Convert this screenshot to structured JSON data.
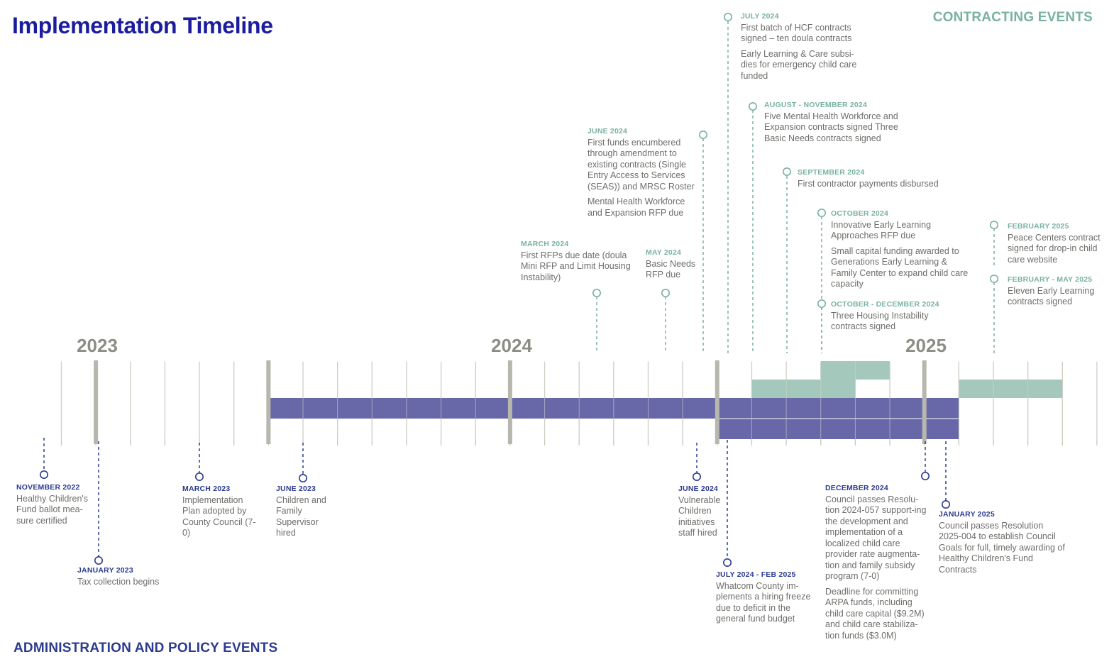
{
  "title": "Implementation Timeline",
  "contracting_label": "CONTRACTING EVENTS",
  "admin_label": "ADMINISTRATION AND POLICY EVENTS",
  "years": [
    "2023",
    "2024",
    "2025"
  ],
  "colors": {
    "title": "#1b1c9e",
    "contracting": "#79b1a2",
    "administration": "#2b3b8f",
    "purple_bar": "#6868a8",
    "green_bar": "#9fc5b8",
    "grid": "#c7c7be",
    "year_marker": "#b7b7ad",
    "text": "#6d6e6a"
  },
  "chart_data": {
    "type": "timeline",
    "axis": {
      "start": "2022-11",
      "end": "2025-09",
      "year_labels": [
        "2023",
        "2024",
        "2025"
      ]
    },
    "bars": [
      {
        "group": "administration",
        "start": "2023-06",
        "end": "2025-02"
      },
      {
        "group": "administration",
        "start": "2024-07",
        "end": "2025-02"
      },
      {
        "group": "contracting",
        "start": "2024-08",
        "end": "2024-11"
      },
      {
        "group": "contracting",
        "start": "2024-10",
        "end": "2024-12"
      },
      {
        "group": "contracting",
        "start": "2025-02",
        "end": "2025-05"
      }
    ],
    "contracting_events": [
      {
        "date": "JULY 2024",
        "desc": [
          "First batch of HCF contracts signed – ten doula contracts",
          "Early Learning & Care subsi-dies for emergency child care funded"
        ]
      },
      {
        "date": "AUGUST - NOVEMBER 2024",
        "desc": [
          "Five Mental Health Workforce and Expansion contracts signed Three Basic Needs contracts signed"
        ]
      },
      {
        "date": "JUNE 2024",
        "desc": [
          "First funds encumbered through amendment to existing contracts (Single Entry Access to Services (SEAS)) and MRSC Roster",
          "Mental Health Workforce and Expansion RFP due"
        ]
      },
      {
        "date": "SEPTEMBER 2024",
        "desc": [
          "First contractor payments disbursed"
        ]
      },
      {
        "date": "OCTOBER 2024",
        "desc": [
          "Innovative Early Learning Approaches RFP due",
          "Small capital funding awarded to Generations Early Learning & Family Center to expand child care capacity"
        ]
      },
      {
        "date": "OCTOBER - DECEMBER 2024",
        "desc": [
          "Three Housing Instability contracts signed"
        ]
      },
      {
        "date": "FEBRUARY 2025",
        "desc": [
          "Peace Centers contract signed for drop-in child care website"
        ]
      },
      {
        "date": "FEBRUARY - MAY 2025",
        "desc": [
          "Eleven Early Learning contracts signed"
        ]
      },
      {
        "date": "MARCH 2024",
        "desc": [
          "First RFPs due date (doula Mini RFP and Limit Housing Instability)"
        ]
      },
      {
        "date": "MAY 2024",
        "desc": [
          "Basic Needs RFP due"
        ]
      }
    ],
    "administration_events": [
      {
        "date": "NOVEMBER 2022",
        "desc": [
          "Healthy Children's Fund ballot mea-sure certified"
        ]
      },
      {
        "date": "JANUARY 2023",
        "desc": [
          "Tax collection begins"
        ]
      },
      {
        "date": "MARCH 2023",
        "desc": [
          "Implementation Plan adopted by County Council (7-0)"
        ]
      },
      {
        "date": "JUNE 2023",
        "desc": [
          "Children and Family Supervisor hired"
        ]
      },
      {
        "date": "JUNE 2024",
        "desc": [
          "Vulnerable Children initiatives staff hired"
        ]
      },
      {
        "date": "JULY 2024 - FEB 2025",
        "desc": [
          "Whatcom County im-plements a hiring freeze due to deficit in the general fund budget"
        ]
      },
      {
        "date": "DECEMBER 2024",
        "desc": [
          "Council passes Resolu-tion 2024-057 support-ing the development and implementation of a localized child care provider rate augmenta-tion and family subsidy program (7-0)",
          "Deadline for committing ARPA funds, including child care capital ($9.2M) and child care stabiliza-tion funds ($3.0M)"
        ]
      },
      {
        "date": "JANUARY 2025",
        "desc": [
          "Council passes Resolution 2025-004 to establish Council Goals for full, timely awarding of Healthy Children's Fund Contracts"
        ]
      }
    ]
  }
}
